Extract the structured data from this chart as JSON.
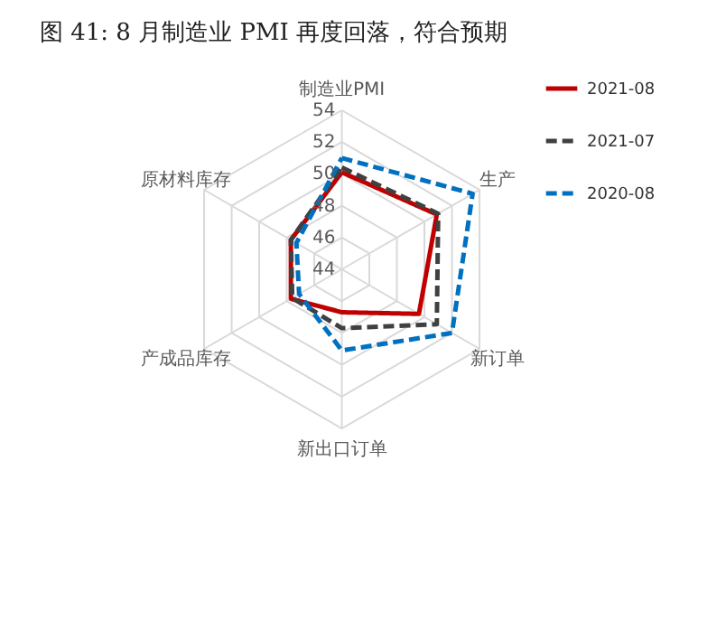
{
  "chart_data": {
    "type": "radar",
    "title": "图 41:      8 月制造业 PMI 再度回落，符合预期",
    "categories": [
      "制造业PMI",
      "生产",
      "新订单",
      "新出口订单",
      "产成品库存",
      "原材料库存"
    ],
    "ylim": [
      44,
      54
    ],
    "yticks": [
      44,
      46,
      48,
      50,
      52,
      54
    ],
    "grid": true,
    "legend": "right",
    "series": [
      {
        "name": "2021-08",
        "color": "#c00000",
        "line_style": "solid",
        "values": [
          50.1,
          50.9,
          49.6,
          46.7,
          47.7,
          47.7
        ]
      },
      {
        "name": "2021-07",
        "color": "#404040",
        "line_style": "dashed",
        "values": [
          50.4,
          51.0,
          50.9,
          47.7,
          47.6,
          47.7
        ]
      },
      {
        "name": "2020-08",
        "color": "#0070c0",
        "line_style": "dashed",
        "values": [
          51.0,
          53.5,
          52.0,
          49.1,
          47.1,
          47.3
        ]
      }
    ]
  }
}
